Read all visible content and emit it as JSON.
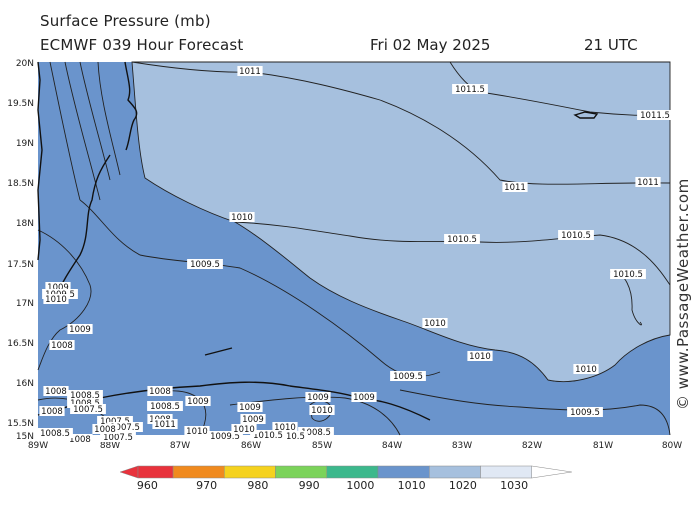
{
  "header": {
    "title": "Surface Pressure (mb)",
    "model": "ECMWF 039 Hour Forecast",
    "date": "Fri 02 May 2025",
    "time": "21 UTC"
  },
  "credit": "© www.PassageWeather.com",
  "axes": {
    "lat_labels": [
      "20N",
      "19.5N",
      "19N",
      "18.5N",
      "18N",
      "17.5N",
      "17N",
      "16.5N",
      "16N",
      "15.5N",
      "15N"
    ],
    "lon_labels": [
      "89W",
      "88W",
      "87W",
      "86W",
      "85W",
      "84W",
      "83W",
      "82W",
      "81W",
      "80W"
    ]
  },
  "isobar_labels": [
    "1011",
    "1011.5",
    "1011.5",
    "1011",
    "1011",
    "1010",
    "1010.5",
    "1010.5",
    "1010.5",
    "1009.5",
    "1010",
    "1010",
    "1010",
    "1009.5",
    "1009.5",
    "1009",
    "1009.5",
    "1010",
    "1009",
    "1008",
    "1008",
    "1008.5",
    "1008",
    "1007.5",
    "1009",
    "1009",
    "1008.5",
    "1009.5",
    "1009",
    "1008.5",
    "1008",
    "1007.5",
    "1010",
    "1011",
    "1010.5",
    "1009.5",
    "1010",
    "1008",
    "1007.5",
    "1008",
    "1008.5",
    "1009",
    "1010",
    "1008",
    "1008.5",
    "1007.5",
    "1010.5",
    "1010",
    "1009"
  ],
  "colorbar": {
    "ticks": [
      "960",
      "970",
      "980",
      "990",
      "1000",
      "1010",
      "1020",
      "1030"
    ],
    "colors": [
      "#e8323c",
      "#f08a1e",
      "#f5d21e",
      "#7bd35a",
      "#3cb88c",
      "#6a94cc",
      "#a6c0de",
      "#e0e8f4",
      "#ffffff"
    ]
  },
  "fills": {
    "low": "#6a94cc",
    "high": "#a6c0de",
    "land": "#6a94cc"
  }
}
